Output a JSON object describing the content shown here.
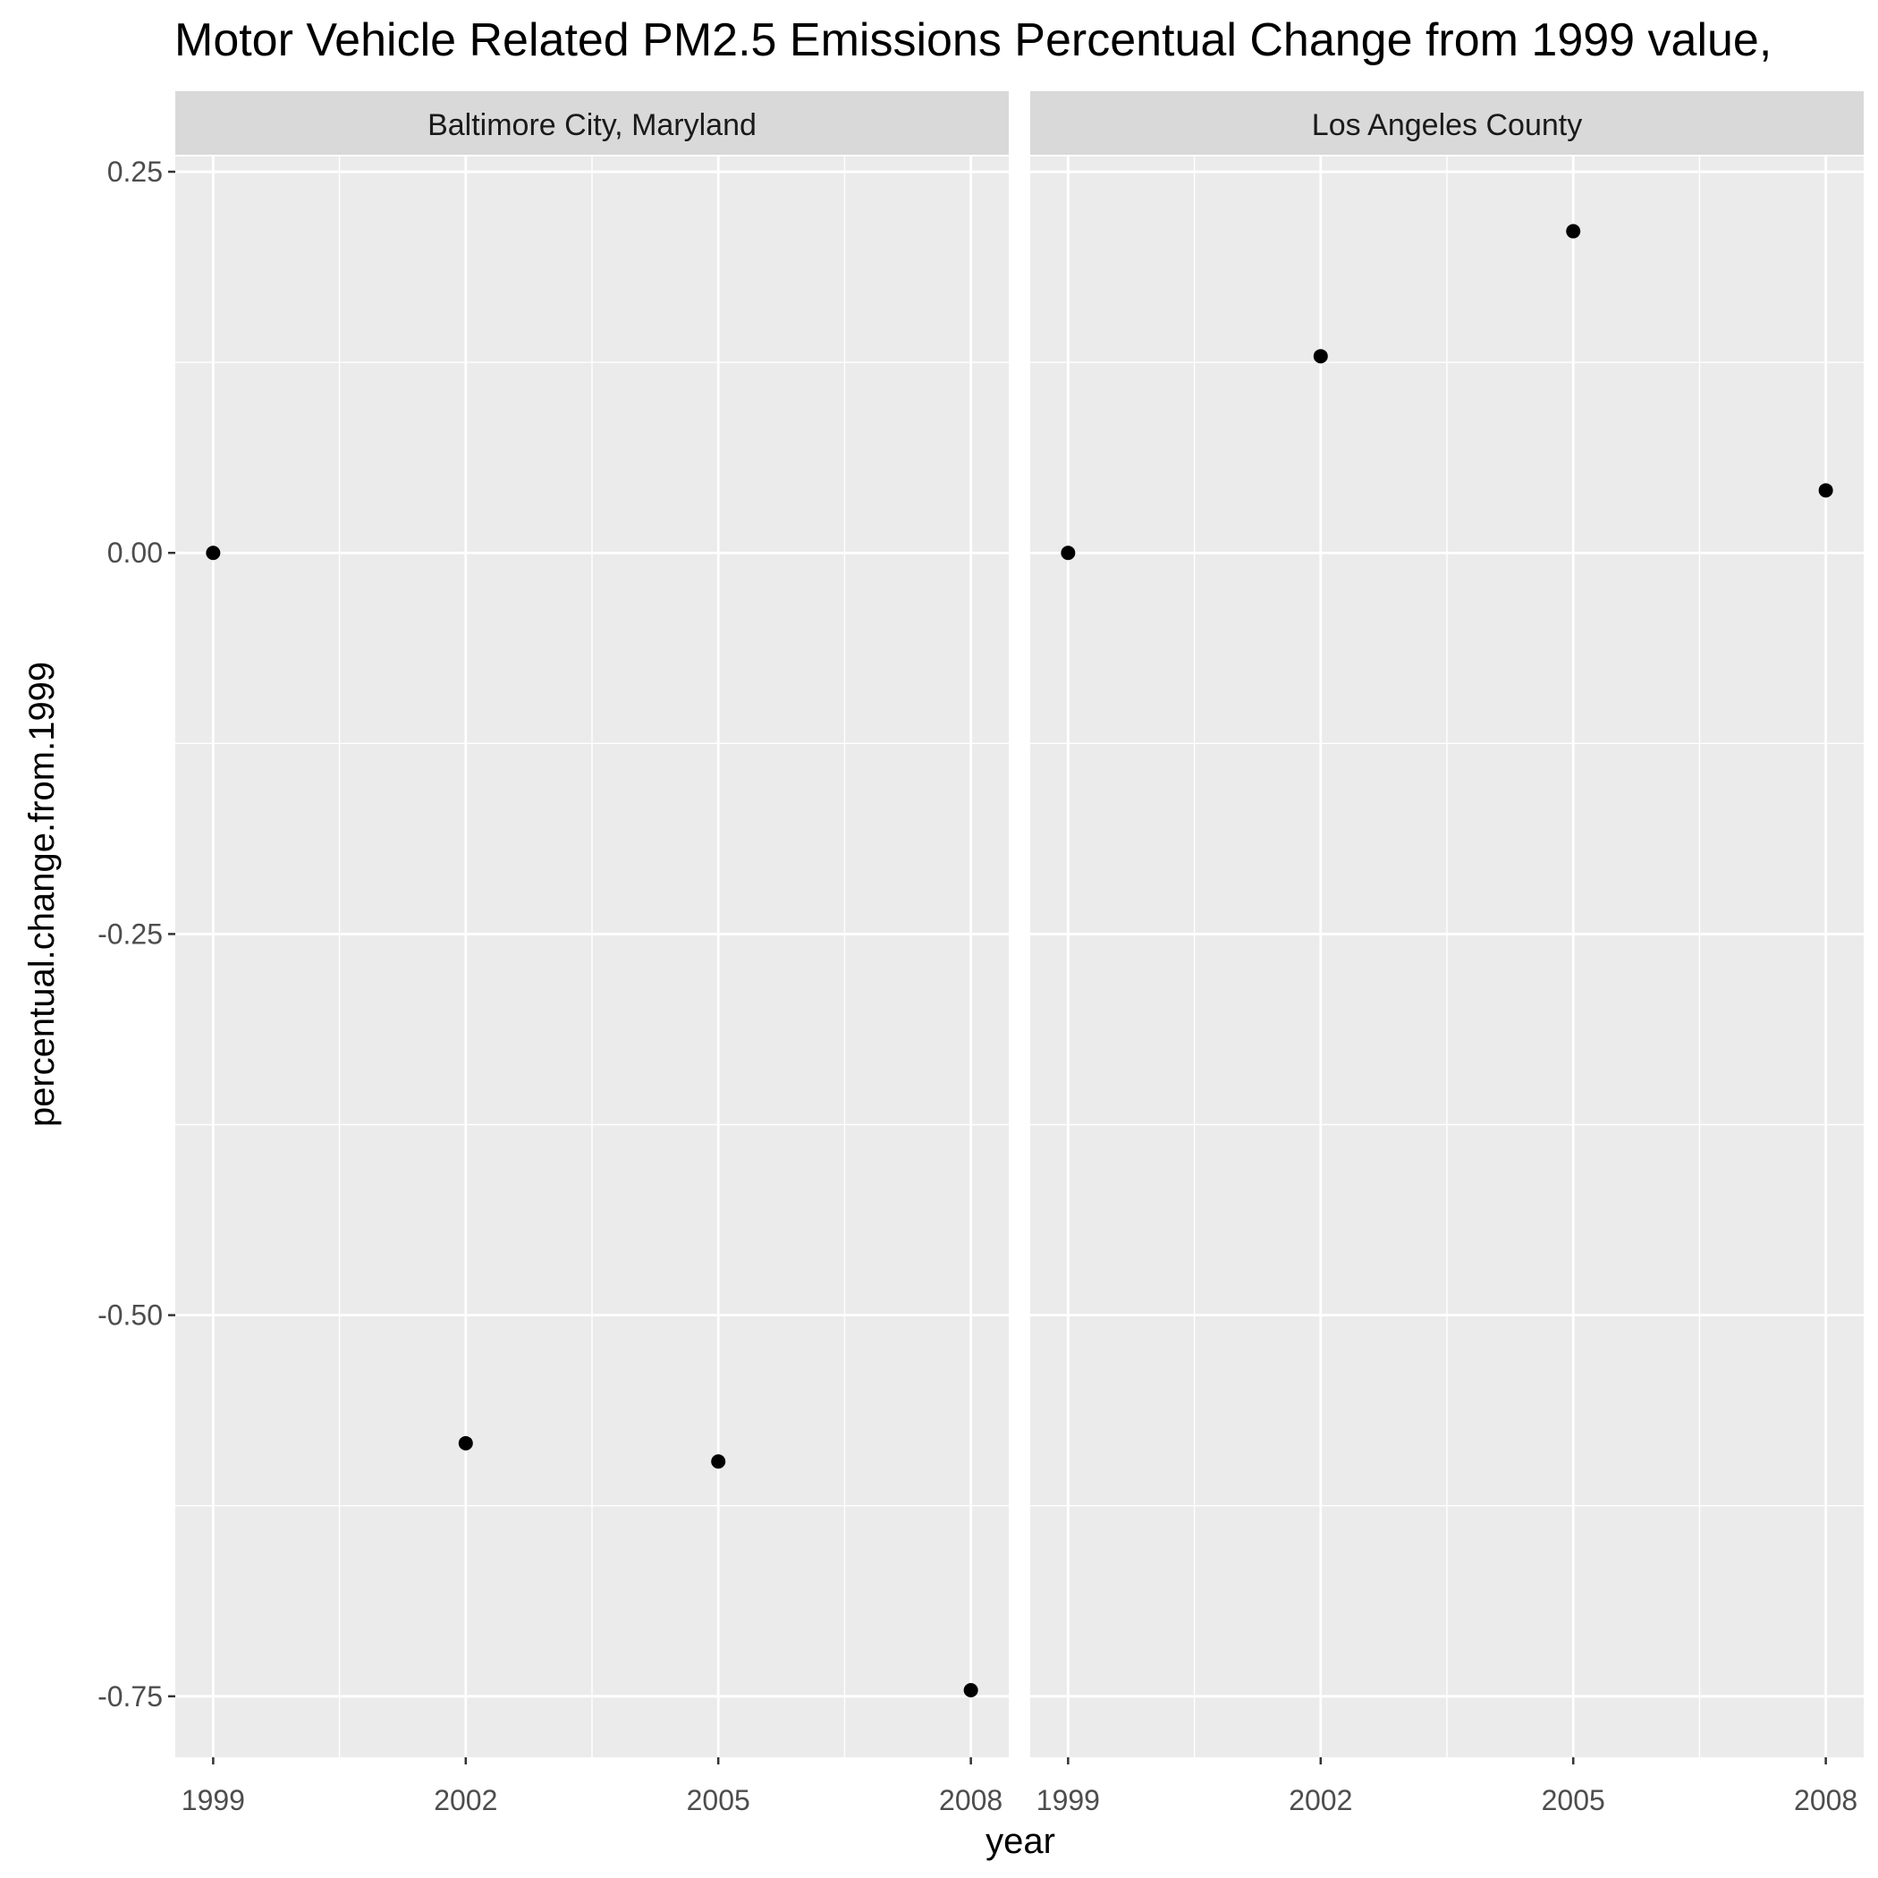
{
  "chart_data": {
    "type": "scatter",
    "title": "Motor Vehicle Related PM2.5 Emissions Percentual Change from 1999 value,",
    "xlabel": "year",
    "ylabel": "percentual.change.from.1999",
    "x_ticks": [
      1999,
      2002,
      2005,
      2008
    ],
    "x_tick_labels": [
      "1999",
      "2002",
      "2005",
      "2008"
    ],
    "xlim": [
      1998.55,
      2008.45
    ],
    "y_ticks": [
      0.25,
      0.0,
      -0.25,
      -0.5,
      -0.75
    ],
    "y_tick_labels": [
      "0.25",
      "0.00",
      "-0.25",
      "-0.50",
      "-0.75"
    ],
    "ylim": [
      -0.79,
      0.26
    ],
    "grid": true,
    "point_color": "#000000",
    "panel_background": "#ebebeb",
    "strip_background": "#d9d9d9",
    "grid_color": "#ffffff",
    "facets": [
      {
        "label": "Baltimore City, Maryland",
        "x": [
          1999,
          2002,
          2005,
          2008
        ],
        "y": [
          0.0,
          -0.584,
          -0.596,
          -0.746
        ]
      },
      {
        "label": "Los Angeles County",
        "x": [
          1999,
          2002,
          2005,
          2008
        ],
        "y": [
          0.0,
          0.129,
          0.211,
          0.041
        ]
      }
    ]
  }
}
